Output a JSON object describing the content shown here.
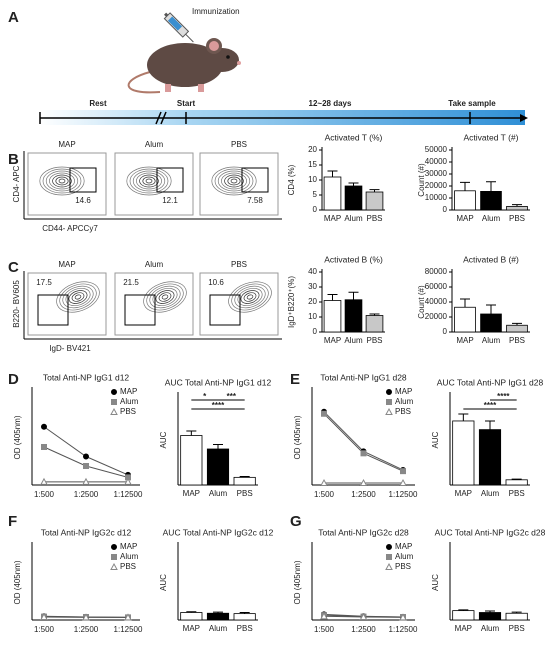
{
  "figure": {
    "letters": [
      "A",
      "B",
      "C",
      "D",
      "E",
      "F",
      "G"
    ],
    "mouse_label": "Immunization",
    "timeline": [
      "Rest",
      "Start",
      "12~28 days",
      "Take sample"
    ],
    "flow": [
      {
        "y_axis": "CD4- APC",
        "x_axis": "CD44- APCCy7",
        "plots": [
          {
            "name": "MAP",
            "gate": 14.6
          },
          {
            "name": "Alum",
            "gate": 12.1
          },
          {
            "name": "PBS",
            "gate": 7.58
          }
        ]
      },
      {
        "y_axis": "B220- BV605",
        "x_axis": "IgD- BV421",
        "plots": [
          {
            "name": "MAP",
            "gate": 17.5
          },
          {
            "name": "Alum",
            "gate": 21.5
          },
          {
            "name": "PBS",
            "gate": 10.6
          }
        ]
      }
    ]
  },
  "chart_data": [
    {
      "type": "bar",
      "title": "Activated T (%)",
      "y_label": "CD4 (%)",
      "categories": [
        "MAP",
        "Alum",
        "PBS"
      ],
      "values": [
        11,
        8,
        6
      ],
      "errors": [
        2,
        1,
        0.8
      ],
      "colors": [
        "#ffffff",
        "#000000",
        "#c8c8c8"
      ],
      "ylim": [
        0,
        20
      ],
      "yticks": [
        0,
        5,
        10,
        15,
        20
      ]
    },
    {
      "type": "bar",
      "title": "Activated T (#)",
      "y_label": "Count (#)",
      "categories": [
        "MAP",
        "Alum",
        "PBS"
      ],
      "values": [
        16000,
        15500,
        3000
      ],
      "errors": [
        7000,
        8000,
        1500
      ],
      "colors": [
        "#ffffff",
        "#000000",
        "#c8c8c8"
      ],
      "ylim": [
        0,
        50000
      ],
      "yticks": [
        0,
        10000,
        20000,
        30000,
        40000,
        50000
      ]
    },
    {
      "type": "bar",
      "title": "Activated B (%)",
      "y_label": "IgD⁺B220⁺(%)",
      "categories": [
        "MAP",
        "Alum",
        "PBS"
      ],
      "values": [
        21,
        21.5,
        11
      ],
      "errors": [
        4,
        5,
        1
      ],
      "colors": [
        "#ffffff",
        "#000000",
        "#c8c8c8"
      ],
      "ylim": [
        0,
        40
      ],
      "yticks": [
        0,
        10,
        20,
        30,
        40
      ]
    },
    {
      "type": "bar",
      "title": "Activated B (#)",
      "y_label": "Count (#)",
      "categories": [
        "MAP",
        "Alum",
        "PBS"
      ],
      "values": [
        33000,
        24000,
        9000
      ],
      "errors": [
        11000,
        12000,
        2500
      ],
      "colors": [
        "#ffffff",
        "#000000",
        "#c8c8c8"
      ],
      "ylim": [
        0,
        80000
      ],
      "yticks": [
        0,
        20000,
        40000,
        60000,
        80000
      ]
    },
    {
      "type": "line",
      "title": "Total Anti-NP IgG1 d12",
      "y_label": "OD (405nm)",
      "categories": [
        "1:500",
        "1:2500",
        "1:12500"
      ],
      "series": [
        {
          "name": "MAP",
          "color": "#000000",
          "marker": "circle",
          "values": [
            0.92,
            0.45,
            0.16
          ]
        },
        {
          "name": "Alum",
          "color": "#888888",
          "marker": "square",
          "values": [
            0.6,
            0.3,
            0.12
          ]
        },
        {
          "name": "PBS",
          "color": "#888888",
          "marker": "triangle",
          "values": [
            0.05,
            0.05,
            0.05
          ]
        }
      ],
      "ylim": [
        0,
        1.5
      ]
    },
    {
      "type": "bar",
      "title": "AUC Total Anti-NP IgG1 d12",
      "y_label": "AUC",
      "categories": [
        "MAP",
        "Alum",
        "PBS"
      ],
      "values": [
        1.1,
        0.8,
        0.17
      ],
      "errors": [
        0.1,
        0.1,
        0.02
      ],
      "colors": [
        "#ffffff",
        "#000000",
        "#ffffff"
      ],
      "ylim": [
        0,
        2
      ],
      "annotations": [
        "****",
        "*",
        "***"
      ]
    },
    {
      "type": "line",
      "title": "Total Anti-NP IgG1 d28",
      "y_label": "OD (405nm)",
      "categories": [
        "1:500",
        "1:2500",
        "1:12500"
      ],
      "series": [
        {
          "name": "MAP",
          "color": "#000000",
          "marker": "circle",
          "values": [
            1.85,
            0.85,
            0.38
          ]
        },
        {
          "name": "Alum",
          "color": "#888888",
          "marker": "square",
          "values": [
            1.8,
            0.8,
            0.35
          ]
        },
        {
          "name": "PBS",
          "color": "#888888",
          "marker": "triangle",
          "values": [
            0.05,
            0.05,
            0.05
          ]
        }
      ],
      "ylim": [
        0,
        2.4
      ]
    },
    {
      "type": "bar",
      "title": "AUC Total Anti-NP IgG1 d28",
      "y_label": "AUC",
      "categories": [
        "MAP",
        "Alum",
        "PBS"
      ],
      "values": [
        1.85,
        1.6,
        0.15
      ],
      "errors": [
        0.2,
        0.25,
        0.02
      ],
      "colors": [
        "#ffffff",
        "#000000",
        "#ffffff"
      ],
      "ylim": [
        0,
        2.6
      ],
      "annotations": [
        "****",
        "****"
      ]
    },
    {
      "type": "line",
      "title": "Total Anti-NP IgG2c d12",
      "y_label": "OD (405nm)",
      "categories": [
        "1:500",
        "1:2500",
        "1:12500"
      ],
      "series": [
        {
          "name": "MAP",
          "color": "#000000",
          "marker": "circle",
          "values": [
            0.1,
            0.08,
            0.07
          ]
        },
        {
          "name": "Alum",
          "color": "#888888",
          "marker": "square",
          "values": [
            0.09,
            0.08,
            0.07
          ]
        },
        {
          "name": "PBS",
          "color": "#888888",
          "marker": "triangle",
          "values": [
            0.08,
            0.07,
            0.07
          ]
        }
      ],
      "ylim": [
        0,
        2
      ]
    },
    {
      "type": "bar",
      "title": "AUC Total Anti-NP IgG2c d12",
      "y_label": "AUC",
      "categories": [
        "MAP",
        "Alum",
        "PBS"
      ],
      "values": [
        0.2,
        0.18,
        0.17
      ],
      "errors": [
        0.02,
        0.03,
        0.03
      ],
      "colors": [
        "#ffffff",
        "#000000",
        "#ffffff"
      ],
      "ylim": [
        0,
        2
      ]
    },
    {
      "type": "line",
      "title": "Total Anti-NP IgG2c d28",
      "y_label": "OD (405nm)",
      "categories": [
        "1:500",
        "1:2500",
        "1:12500"
      ],
      "series": [
        {
          "name": "MAP",
          "color": "#000000",
          "marker": "circle",
          "values": [
            0.15,
            0.1,
            0.08
          ]
        },
        {
          "name": "Alum",
          "color": "#888888",
          "marker": "square",
          "values": [
            0.13,
            0.09,
            0.08
          ]
        },
        {
          "name": "PBS",
          "color": "#888888",
          "marker": "triangle",
          "values": [
            0.1,
            0.08,
            0.07
          ]
        }
      ],
      "ylim": [
        0,
        2
      ]
    },
    {
      "type": "bar",
      "title": "AUC Total Anti-NP IgG2c d28",
      "y_label": "AUC",
      "categories": [
        "MAP",
        "Alum",
        "PBS"
      ],
      "values": [
        0.25,
        0.2,
        0.18
      ],
      "errors": [
        0.02,
        0.04,
        0.03
      ],
      "colors": [
        "#ffffff",
        "#000000",
        "#ffffff"
      ],
      "ylim": [
        0,
        2
      ]
    }
  ]
}
